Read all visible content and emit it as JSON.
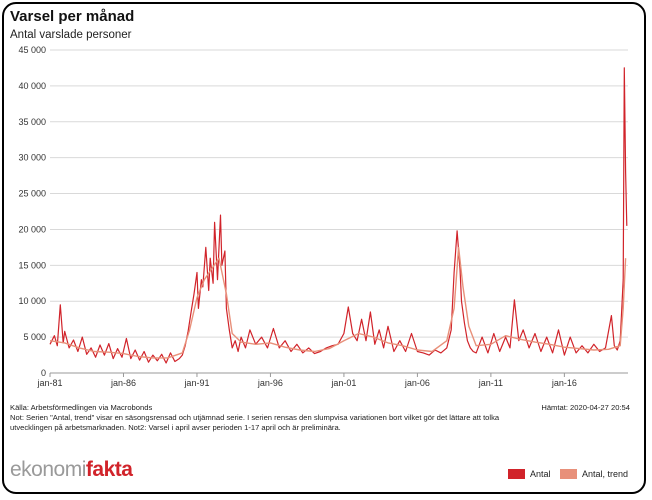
{
  "header": {
    "title": "Varsel per månad",
    "subtitle": "Antal varslade personer"
  },
  "footer": {
    "source": "Källa: Arbetsförmedlingen via Macrobonds",
    "note": "Not: Serien \"Antal, trend\" visar en säsongsrensad och utjämnad serie. I serien rensas den slumpvisa variationen bort vilket gör det lättare att tolka utvecklingen på arbetsmarknaden. Not2: Varsel i april avser perioden 1-17 april och är preliminära.",
    "retrieved": "Hämtat: 2020-04-27 20:54"
  },
  "logo": {
    "part1": "ekonomi",
    "part2": "fakta"
  },
  "colors": {
    "antal": "#d1232a",
    "trend": "#e8907a",
    "grid": "#d9d9d9"
  },
  "chart_data": {
    "type": "line",
    "title": "Varsel per månad",
    "ylabel": "Antal varslade personer",
    "ylim": [
      0,
      45000
    ],
    "yticks": [
      0,
      5000,
      10000,
      15000,
      20000,
      25000,
      30000,
      35000,
      40000,
      45000
    ],
    "ytick_labels": [
      "0",
      "5 000",
      "10 000",
      "15 000",
      "20 000",
      "25 000",
      "30 000",
      "35 000",
      "40 000",
      "45 000"
    ],
    "xlim": [
      1981.0,
      2020.33
    ],
    "xticks": [
      1981,
      1986,
      1991,
      1996,
      2001,
      2006,
      2011,
      2016
    ],
    "xtick_labels": [
      "jan-81",
      "jan-86",
      "jan-91",
      "jan-96",
      "jan-01",
      "jan-06",
      "jan-11",
      "jan-16"
    ],
    "legend_position": "bottom-right",
    "series": [
      {
        "name": "Antal",
        "x": [
          1981.0,
          1981.3,
          1981.5,
          1981.7,
          1981.9,
          1982.0,
          1982.3,
          1982.6,
          1982.9,
          1983.2,
          1983.5,
          1983.8,
          1984.1,
          1984.4,
          1984.7,
          1985.0,
          1985.3,
          1985.6,
          1985.9,
          1986.2,
          1986.5,
          1986.8,
          1987.1,
          1987.4,
          1987.7,
          1988.0,
          1988.3,
          1988.6,
          1988.9,
          1989.2,
          1989.5,
          1989.8,
          1990.0,
          1990.2,
          1990.4,
          1990.6,
          1990.8,
          1991.0,
          1991.1,
          1991.3,
          1991.4,
          1991.6,
          1991.8,
          1991.9,
          1992.1,
          1992.2,
          1992.4,
          1992.6,
          1992.7,
          1992.9,
          1993.0,
          1993.2,
          1993.4,
          1993.6,
          1993.8,
          1994.0,
          1994.3,
          1994.6,
          1995.0,
          1995.4,
          1995.8,
          1996.2,
          1996.6,
          1997.0,
          1997.4,
          1997.8,
          1998.2,
          1998.6,
          1999.0,
          1999.4,
          1999.8,
          2000.2,
          2000.6,
          2001.0,
          2001.3,
          2001.6,
          2001.9,
          2002.2,
          2002.5,
          2002.8,
          2003.1,
          2003.4,
          2003.7,
          2004.0,
          2004.4,
          2004.8,
          2005.2,
          2005.6,
          2006.0,
          2006.4,
          2006.8,
          2007.2,
          2007.6,
          2008.0,
          2008.3,
          2008.5,
          2008.7,
          2008.9,
          2009.0,
          2009.2,
          2009.4,
          2009.6,
          2009.8,
          2010.0,
          2010.4,
          2010.8,
          2011.2,
          2011.6,
          2012.0,
          2012.3,
          2012.6,
          2012.9,
          2013.2,
          2013.6,
          2014.0,
          2014.4,
          2014.8,
          2015.2,
          2015.6,
          2016.0,
          2016.4,
          2016.8,
          2017.2,
          2017.6,
          2018.0,
          2018.4,
          2018.8,
          2019.2,
          2019.4,
          2019.6,
          2019.8,
          2020.0,
          2020.08,
          2020.17,
          2020.25
        ],
        "values": [
          4000,
          5200,
          3800,
          9500,
          4200,
          5800,
          3500,
          4600,
          3000,
          5000,
          2600,
          3500,
          2200,
          3900,
          2500,
          4100,
          2000,
          3400,
          2200,
          4800,
          2000,
          3200,
          1800,
          3000,
          1500,
          2500,
          1700,
          2600,
          1400,
          2800,
          1600,
          2000,
          2500,
          3800,
          5800,
          8500,
          11000,
          14000,
          9000,
          13000,
          12000,
          17500,
          11500,
          16000,
          12500,
          21000,
          13000,
          22000,
          15000,
          17000,
          9000,
          6000,
          3500,
          4500,
          3000,
          5000,
          3500,
          6000,
          4000,
          5000,
          3500,
          6200,
          3500,
          4500,
          3000,
          4000,
          2800,
          3500,
          2700,
          3000,
          3500,
          3800,
          4000,
          5500,
          9200,
          5500,
          4500,
          7500,
          4500,
          8500,
          4000,
          6000,
          3500,
          6500,
          3000,
          4500,
          3000,
          5500,
          3000,
          2800,
          2500,
          3200,
          2800,
          3500,
          6000,
          14000,
          19800,
          14500,
          10000,
          7000,
          4500,
          3500,
          3000,
          2800,
          5000,
          2800,
          5500,
          3000,
          5000,
          3500,
          10200,
          4500,
          6000,
          3500,
          5500,
          3000,
          5000,
          2800,
          6000,
          2500,
          5000,
          2800,
          3800,
          2800,
          4000,
          3000,
          3500,
          8000,
          3800,
          3200,
          4500,
          13000,
          42500,
          28000,
          20500
        ]
      },
      {
        "name": "Antal, trend",
        "x": [
          1981.0,
          1982.0,
          1983.0,
          1984.0,
          1985.0,
          1986.0,
          1987.0,
          1988.0,
          1989.0,
          1990.0,
          1990.5,
          1991.0,
          1991.5,
          1992.0,
          1992.5,
          1993.0,
          1993.4,
          1994.0,
          1995.0,
          1996.0,
          1997.0,
          1998.0,
          1999.0,
          2000.0,
          2001.0,
          2002.0,
          2003.0,
          2004.0,
          2005.0,
          2006.0,
          2007.0,
          2008.0,
          2008.5,
          2008.8,
          2009.1,
          2009.5,
          2010.0,
          2011.0,
          2012.0,
          2013.0,
          2014.0,
          2015.0,
          2016.0,
          2017.0,
          2018.0,
          2019.0,
          2019.8,
          2020.0,
          2020.17
        ],
        "values": [
          4500,
          4200,
          3500,
          3000,
          2900,
          2700,
          2300,
          2100,
          2100,
          2800,
          6000,
          10500,
          13000,
          14500,
          16000,
          11000,
          5500,
          4300,
          4000,
          4200,
          3600,
          3200,
          3000,
          3400,
          4500,
          5500,
          5000,
          4200,
          3800,
          3200,
          3000,
          4500,
          9000,
          17500,
          12000,
          6500,
          3800,
          4000,
          5200,
          4700,
          4300,
          4000,
          3600,
          3400,
          3200,
          3300,
          3800,
          9000,
          16000
        ]
      }
    ]
  }
}
